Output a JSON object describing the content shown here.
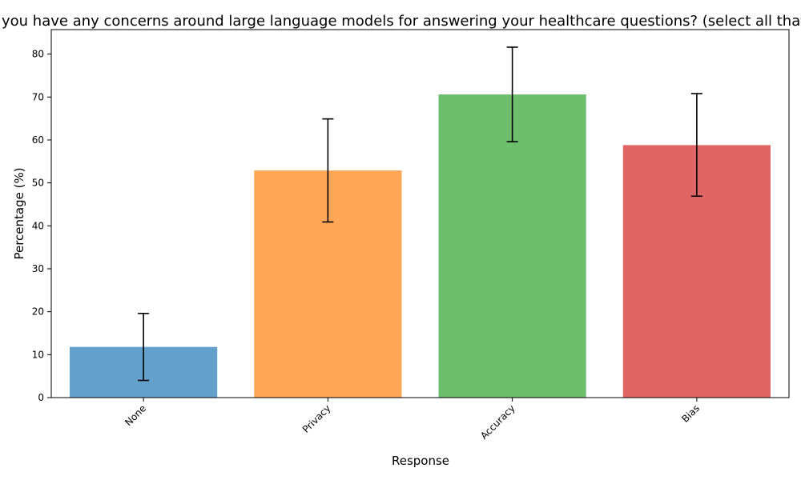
{
  "chart_data": {
    "type": "bar",
    "title": "Do you have any concerns around large language models for answering your healthcare questions? (select all that apply)",
    "xlabel": "Response",
    "ylabel": "Percentage (%)",
    "categories": [
      "None",
      "Privacy",
      "Accuracy",
      "Bias"
    ],
    "values": [
      11.8,
      52.9,
      70.6,
      58.8
    ],
    "error_bars": [
      {
        "low": 4.0,
        "high": 19.6
      },
      {
        "low": 40.9,
        "high": 64.9
      },
      {
        "low": 59.6,
        "high": 81.6
      },
      {
        "low": 46.9,
        "high": 70.8
      }
    ],
    "colors": [
      "#63a0cb",
      "#ffa657",
      "#6dbe6d",
      "#e06666"
    ],
    "ylim": [
      0,
      85.7
    ],
    "yticks": [
      0,
      10,
      20,
      30,
      40,
      50,
      60,
      70,
      80
    ],
    "grid": false,
    "legend": "none"
  }
}
